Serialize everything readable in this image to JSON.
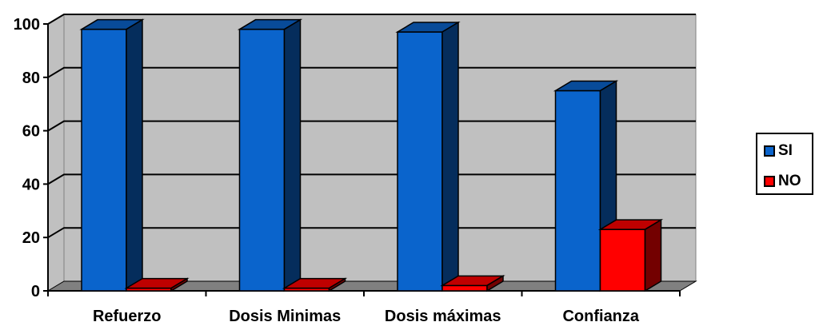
{
  "chart_data": {
    "type": "bar",
    "categories": [
      "Refuerzo",
      "Dosis Minimas",
      "Dosis máximas",
      "Confianza"
    ],
    "series": [
      {
        "name": "SI",
        "values": [
          98,
          98,
          97,
          75
        ],
        "color": "#0a64cc"
      },
      {
        "name": "NO",
        "values": [
          1,
          1,
          2,
          23
        ],
        "color": "#ff0000"
      }
    ],
    "ylim": [
      0,
      100
    ],
    "yticks": [
      0,
      20,
      40,
      60,
      80,
      100
    ],
    "grid": true,
    "three_d": true,
    "legend_position": "right"
  },
  "legend": {
    "items": [
      {
        "label": "SI",
        "color": "#0a64cc"
      },
      {
        "label": "NO",
        "color": "#ff0000"
      }
    ]
  }
}
